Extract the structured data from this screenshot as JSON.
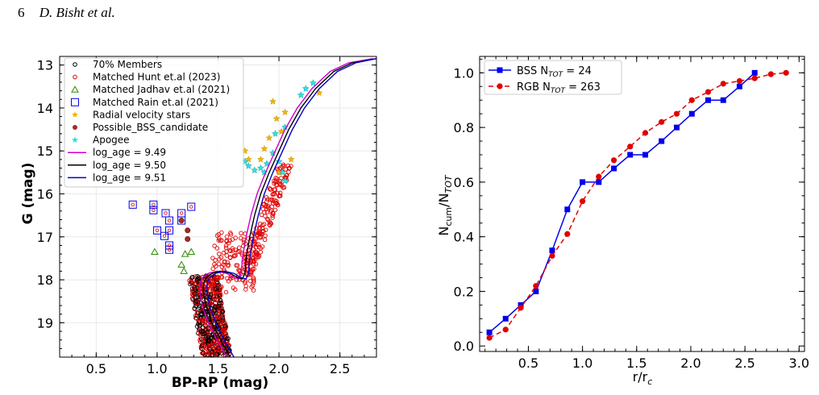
{
  "header": {
    "page_number": "6",
    "authors": "D. Bisht et al."
  },
  "chart_data": [
    {
      "type": "scatter",
      "title": "",
      "xlabel": "BP-RP (mag)",
      "ylabel": "G (mag)",
      "xlim": [
        0.2,
        2.8
      ],
      "ylim": [
        19.8,
        12.8
      ],
      "y_inverted": true,
      "xticks": [
        "0.5",
        "1.0",
        "1.5",
        "2.0",
        "2.5"
      ],
      "yticks": [
        "13",
        "14",
        "15",
        "16",
        "17",
        "18",
        "19"
      ],
      "grid": true,
      "legend_position": "top-left",
      "legend": [
        {
          "label": "70% Members",
          "marker": "circle",
          "color": "#000000"
        },
        {
          "label": "Matched Hunt et.al (2023)",
          "marker": "circle",
          "color": "#e00000"
        },
        {
          "label": "Matched Jadhav et.al (2021)",
          "marker": "triangle",
          "color": "#2a8a00"
        },
        {
          "label": " Matched Rain et.al (2021)",
          "marker": "square",
          "color": "#0000ee"
        },
        {
          "label": "Radial velocity stars",
          "marker": "star",
          "color": "#f2b600"
        },
        {
          "label": "Possible_BSS_candidate",
          "marker": "filled-circle",
          "color": "#a52a2a"
        },
        {
          "label": "Apogee",
          "marker": "star",
          "color": "#30e0e0"
        },
        {
          "label": "log_age = 9.49",
          "marker": "line",
          "color": "#cc00cc"
        },
        {
          "label": "log_age = 9.50",
          "marker": "line",
          "color": "#000000"
        },
        {
          "label": "log_age = 9.51",
          "marker": "line",
          "color": "#0000cc"
        }
      ],
      "series": [
        {
          "name": "Matched Rain et.al (2021)",
          "points": [
            [
              0.8,
              16.25
            ],
            [
              0.97,
              16.25
            ],
            [
              0.97,
              16.38
            ],
            [
              1.07,
              16.45
            ],
            [
              1.2,
              16.45
            ],
            [
              1.28,
              16.3
            ],
            [
              1.1,
              16.62
            ],
            [
              1.2,
              16.62
            ],
            [
              1.0,
              16.85
            ],
            [
              1.1,
              16.85
            ],
            [
              1.06,
              16.98
            ],
            [
              1.1,
              17.2
            ],
            [
              1.1,
              17.3
            ]
          ]
        },
        {
          "name": "Matched Jadhav et.al (2021)",
          "points": [
            [
              0.98,
              17.35
            ],
            [
              1.23,
              17.4
            ],
            [
              1.28,
              17.35
            ],
            [
              1.2,
              17.65
            ],
            [
              1.22,
              17.8
            ]
          ]
        },
        {
          "name": "Possible_BSS_candidate",
          "points": [
            [
              1.2,
              16.62
            ],
            [
              1.25,
              16.85
            ],
            [
              1.25,
              17.05
            ]
          ]
        },
        {
          "name": "Radial velocity stars",
          "points": [
            [
              1.72,
              15.0
            ],
            [
              1.75,
              15.2
            ],
            [
              1.88,
              14.95
            ],
            [
              1.92,
              14.7
            ],
            [
              1.95,
              13.85
            ],
            [
              1.98,
              14.25
            ],
            [
              2.05,
              14.1
            ],
            [
              2.02,
              14.55
            ],
            [
              2.1,
              15.2
            ],
            [
              2.0,
              15.5
            ],
            [
              2.33,
              13.65
            ],
            [
              1.85,
              15.2
            ]
          ]
        },
        {
          "name": "Apogee",
          "points": [
            [
              1.72,
              15.25
            ],
            [
              1.75,
              15.35
            ],
            [
              1.8,
              15.45
            ],
            [
              1.85,
              15.4
            ],
            [
              1.9,
              15.3
            ],
            [
              1.95,
              15.05
            ],
            [
              2.0,
              15.25
            ],
            [
              2.03,
              15.5
            ],
            [
              2.05,
              15.7
            ],
            [
              1.97,
              14.6
            ],
            [
              2.05,
              14.45
            ],
            [
              2.22,
              13.55
            ],
            [
              2.28,
              13.42
            ],
            [
              2.18,
              13.7
            ],
            [
              1.88,
              15.5
            ]
          ]
        }
      ],
      "isochrones": [
        {
          "name": "log_age = 9.49",
          "color": "#cc00cc",
          "offset": -0.03
        },
        {
          "name": "log_age = 9.50",
          "color": "#000000",
          "offset": 0.0
        },
        {
          "name": "log_age = 9.51",
          "color": "#0000cc",
          "offset": 0.03
        }
      ]
    },
    {
      "type": "line",
      "title": "",
      "xlabel": "r/r_c",
      "ylabel": "N_cum/N_TOT",
      "xlim": [
        0.05,
        3.05
      ],
      "ylim": [
        -0.02,
        1.06
      ],
      "xticks": [
        "0.5",
        "1.0",
        "1.5",
        "2.0",
        "2.5",
        "3.0"
      ],
      "yticks": [
        "0.0",
        "0.2",
        "0.4",
        "0.6",
        "0.8",
        "1.0"
      ],
      "grid": false,
      "legend_position": "top-left",
      "series": [
        {
          "name": "BSS N_TOT = 24",
          "legend_text": "BSS N",
          "legend_sub": "TOT",
          "legend_tail": " = 24",
          "color": "#0000ee",
          "marker": "square",
          "dash": "solid",
          "x": [
            0.14,
            0.29,
            0.43,
            0.57,
            0.72,
            0.86,
            1.0,
            1.15,
            1.29,
            1.44,
            1.58,
            1.73,
            1.87,
            2.01,
            2.16,
            2.3,
            2.45,
            2.59
          ],
          "y": [
            0.05,
            0.1,
            0.15,
            0.2,
            0.35,
            0.5,
            0.6,
            0.6,
            0.65,
            0.7,
            0.7,
            0.75,
            0.8,
            0.85,
            0.9,
            0.9,
            0.95,
            1.0
          ]
        },
        {
          "name": "RGB N_TOT = 263",
          "legend_text": "RGB N",
          "legend_sub": "TOT",
          "legend_tail": " = 263",
          "color": "#e00000",
          "marker": "circle",
          "dash": "dashed",
          "x": [
            0.14,
            0.29,
            0.43,
            0.57,
            0.72,
            0.86,
            1.0,
            1.15,
            1.29,
            1.44,
            1.58,
            1.73,
            1.87,
            2.01,
            2.16,
            2.3,
            2.45,
            2.59,
            2.74,
            2.88
          ],
          "y": [
            0.03,
            0.06,
            0.14,
            0.22,
            0.33,
            0.41,
            0.53,
            0.62,
            0.68,
            0.73,
            0.78,
            0.82,
            0.85,
            0.9,
            0.93,
            0.96,
            0.97,
            0.98,
            0.995,
            1.0
          ]
        }
      ]
    }
  ]
}
